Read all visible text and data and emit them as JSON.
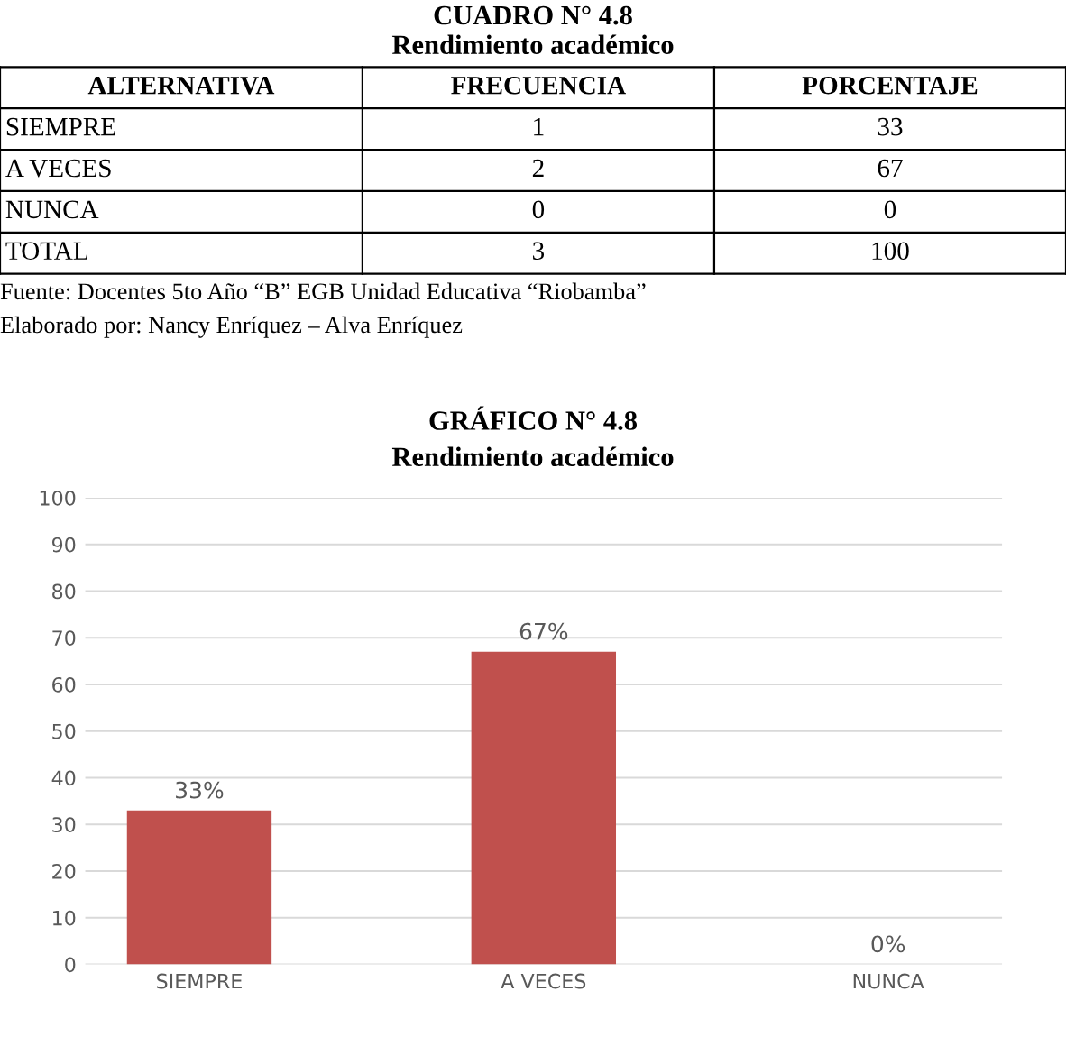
{
  "chart_data": [
    {
      "type": "other",
      "title": "CUADRO N° 4.8",
      "subtitle": "Rendimiento académico",
      "annotations": [
        "ALTERNATIVA",
        "FRECUENCIA",
        "PORCENTAJE",
        "SIEMPRE",
        "1",
        "33",
        "A VECES",
        "2",
        "67",
        "NUNCA",
        "0",
        "0",
        "TOTAL",
        "3",
        "100",
        "Fuente: Docentes 5to Año “B” EGB Unidad Educativa “Riobamba”",
        "Elaborado por: Nancy Enríquez – Alva Enríquez"
      ]
    },
    {
      "type": "bar",
      "title": "GRÁFICO N° 4.8",
      "subtitle": "Rendimiento académico",
      "categories": [
        "SIEMPRE",
        "A VECES",
        "NUNCA"
      ],
      "values": [
        33,
        67,
        0
      ],
      "value_labels": [
        "33%",
        "67%",
        "0%"
      ],
      "color": "#c0504d",
      "ylim": [
        0,
        100
      ],
      "yticks": [
        0,
        10,
        20,
        30,
        40,
        50,
        60,
        70,
        80,
        90,
        100
      ],
      "grid": "y",
      "legend": false
    }
  ]
}
